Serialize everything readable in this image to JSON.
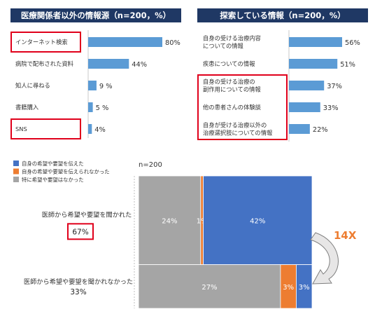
{
  "colors": {
    "header_bg": "#1F3864",
    "bar_blue": "#5B9BD5",
    "gray": "#A5A5A5",
    "orange": "#ED7D31",
    "blue": "#4472C4",
    "highlight": "#E0001B"
  },
  "chart_data": [
    {
      "type": "bar",
      "orientation": "horizontal",
      "title": "医療関係者以外の情報源（n=200，%）",
      "categories": [
        "インターネット検索",
        "病院で配布された資料",
        "知人に尋ねる",
        "書籍購入",
        "SNS"
      ],
      "values": [
        80,
        44,
        9,
        5,
        4
      ],
      "value_labels": [
        "80%",
        "44%",
        "9 %",
        "5 %",
        "4%"
      ],
      "unit": "%",
      "highlighted_categories": [
        "インターネット検索",
        "SNS"
      ]
    },
    {
      "type": "bar",
      "orientation": "horizontal",
      "title": "探索している情報（n=200，%）",
      "categories": [
        [
          "自身の受ける治療内容",
          "についての情報"
        ],
        [
          "疾患についての情報"
        ],
        [
          "自身の受ける治療の",
          "副作用についての情報"
        ],
        [
          "他の患者さんの体験談"
        ],
        [
          "自身が受ける治療以外の",
          "治療選択肢についての情報"
        ]
      ],
      "values": [
        56,
        51,
        37,
        33,
        22
      ],
      "value_labels": [
        "56%",
        "51%",
        "37%",
        "33%",
        "22%"
      ],
      "unit": "%",
      "highlighted_indices": [
        2,
        3,
        4
      ]
    },
    {
      "type": "bar",
      "subtype": "mosaic",
      "subtitle": "n=200",
      "legend": [
        {
          "name": "特に希望や要望はなかった",
          "color": "#A5A5A5"
        },
        {
          "name": "自身の希望や要望を伝えられなかった",
          "color": "#ED7D31"
        },
        {
          "name": "自身の希望や要望を伝えた",
          "color": "#4472C4"
        }
      ],
      "rows": [
        {
          "label": "医師から希望や要望を聞かれた",
          "share": "67%",
          "share_value": 67,
          "segments": [
            24,
            1,
            42
          ],
          "segment_labels": [
            "24%",
            "1%",
            "42%"
          ]
        },
        {
          "label": "医師から希望や要望を聞かれなかった",
          "share": "33%",
          "share_value": 33,
          "segments": [
            27,
            3,
            3
          ],
          "segment_labels": [
            "27%",
            "3%",
            "3%"
          ]
        }
      ],
      "annotation": "14X"
    }
  ]
}
